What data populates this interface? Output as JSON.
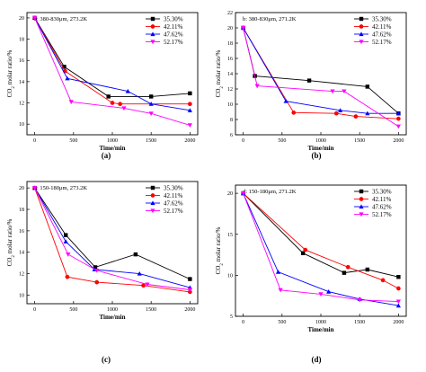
{
  "chart_data": [
    {
      "type": "line",
      "panel": "a",
      "caption": "(a)",
      "annotation": "a: 380-830μm, 273.2K",
      "xlabel": "Time/min",
      "ylabel": "CO2 molar ratio/%",
      "xlim": [
        -100,
        2100
      ],
      "ylim": [
        9,
        20.5
      ],
      "xticks": [
        0,
        500,
        1000,
        1500,
        2000
      ],
      "yticks": [
        10,
        12,
        14,
        16,
        18,
        20
      ],
      "legend_position": "top-right",
      "series": [
        {
          "name": "35.30%",
          "color": "#000000",
          "marker": "square",
          "x": [
            0,
            380,
            950,
            1500,
            2000
          ],
          "y": [
            20,
            15.4,
            12.6,
            12.6,
            12.9
          ]
        },
        {
          "name": "42.11%",
          "color": "#ff0000",
          "marker": "circle",
          "x": [
            0,
            390,
            1000,
            1100,
            2000
          ],
          "y": [
            20,
            15.0,
            12.0,
            11.9,
            11.9
          ]
        },
        {
          "name": "47.62%",
          "color": "#0000ff",
          "marker": "triangle",
          "x": [
            0,
            420,
            1200,
            1500,
            2000
          ],
          "y": [
            20,
            14.3,
            13.1,
            11.9,
            11.3
          ]
        },
        {
          "name": "52.17%",
          "color": "#ff00ff",
          "marker": "triangle-down",
          "x": [
            0,
            470,
            1150,
            1500,
            2000
          ],
          "y": [
            20,
            12.1,
            11.5,
            11.0,
            9.9
          ]
        }
      ]
    },
    {
      "type": "line",
      "panel": "b",
      "caption": "(b)",
      "annotation": "b: 380-830μm, 271.2K",
      "xlabel": "Time/min",
      "ylabel": "CO2 molar ratio/%",
      "xlim": [
        -100,
        2100
      ],
      "ylim": [
        6,
        22
      ],
      "xticks": [
        0,
        500,
        1000,
        1500,
        2000
      ],
      "yticks": [
        6,
        8,
        10,
        12,
        14,
        16,
        18,
        20,
        22
      ],
      "legend_position": "top-right",
      "series": [
        {
          "name": "35.30%",
          "color": "#000000",
          "marker": "square",
          "x": [
            0,
            150,
            850,
            1600,
            2000
          ],
          "y": [
            20,
            13.7,
            13.1,
            12.3,
            8.8
          ]
        },
        {
          "name": "42.11%",
          "color": "#ff0000",
          "marker": "circle",
          "x": [
            0,
            650,
            1200,
            1450,
            2000
          ],
          "y": [
            20,
            8.9,
            8.8,
            8.4,
            8.1
          ]
        },
        {
          "name": "47.62%",
          "color": "#0000ff",
          "marker": "triangle",
          "x": [
            0,
            550,
            1250,
            1600,
            2000
          ],
          "y": [
            20,
            10.4,
            9.2,
            8.8,
            8.8
          ]
        },
        {
          "name": "52.17%",
          "color": "#ff00ff",
          "marker": "triangle-down",
          "x": [
            0,
            180,
            1150,
            1300,
            2000
          ],
          "y": [
            20,
            12.4,
            11.7,
            11.7,
            7.1
          ]
        }
      ]
    },
    {
      "type": "line",
      "panel": "c",
      "caption": "(c)",
      "annotation": "c: 150-180μm, 273.2K",
      "xlabel": "Time/min",
      "ylabel": "CO2 molar ratio/%",
      "xlim": [
        -100,
        2100
      ],
      "ylim": [
        9.2,
        20.6
      ],
      "xticks": [
        0,
        500,
        1000,
        1500,
        2000
      ],
      "yticks": [
        10,
        12,
        14,
        16,
        18,
        20
      ],
      "legend_position": "top-right",
      "series": [
        {
          "name": "35.30%",
          "color": "#000000",
          "marker": "square",
          "x": [
            0,
            400,
            780,
            1300,
            2000
          ],
          "y": [
            20,
            15.6,
            12.6,
            13.8,
            11.5
          ]
        },
        {
          "name": "42.11%",
          "color": "#ff0000",
          "marker": "circle",
          "x": [
            0,
            420,
            800,
            1400,
            2000
          ],
          "y": [
            20,
            11.7,
            11.2,
            10.9,
            10.3
          ]
        },
        {
          "name": "47.62%",
          "color": "#0000ff",
          "marker": "triangle",
          "x": [
            0,
            400,
            770,
            1350,
            2000
          ],
          "y": [
            20,
            15.0,
            12.4,
            12.0,
            10.7
          ]
        },
        {
          "name": "52.17%",
          "color": "#ff00ff",
          "marker": "triangle-down",
          "x": [
            0,
            430,
            800,
            1450,
            2000
          ],
          "y": [
            20,
            13.8,
            12.3,
            11.0,
            10.5
          ]
        }
      ]
    },
    {
      "type": "line",
      "panel": "d",
      "caption": "(d)",
      "annotation": "d: 150-180μm, 271.2K",
      "xlabel": "Time/min",
      "ylabel": "CO2 molar ratio/%",
      "xlim": [
        -100,
        2100
      ],
      "ylim": [
        5,
        21
      ],
      "xticks": [
        0,
        500,
        1000,
        1500,
        2000
      ],
      "yticks": [
        5,
        10,
        15,
        20
      ],
      "legend_position": "top-right",
      "series": [
        {
          "name": "35.30%",
          "color": "#000000",
          "marker": "square",
          "x": [
            0,
            770,
            1300,
            1600,
            2000
          ],
          "y": [
            20,
            12.7,
            10.3,
            10.7,
            9.8
          ]
        },
        {
          "name": "42.11%",
          "color": "#ff0000",
          "marker": "circle",
          "x": [
            0,
            800,
            1350,
            1800,
            2000
          ],
          "y": [
            20,
            13.1,
            11.0,
            9.4,
            8.4
          ]
        },
        {
          "name": "47.62%",
          "color": "#0000ff",
          "marker": "triangle",
          "x": [
            0,
            450,
            1100,
            1500,
            2000
          ],
          "y": [
            20,
            10.4,
            8.0,
            7.1,
            6.3
          ]
        },
        {
          "name": "52.17%",
          "color": "#ff00ff",
          "marker": "triangle-down",
          "x": [
            0,
            480,
            1000,
            1500,
            2000
          ],
          "y": [
            20,
            8.2,
            7.7,
            7.0,
            6.8
          ]
        }
      ]
    }
  ]
}
